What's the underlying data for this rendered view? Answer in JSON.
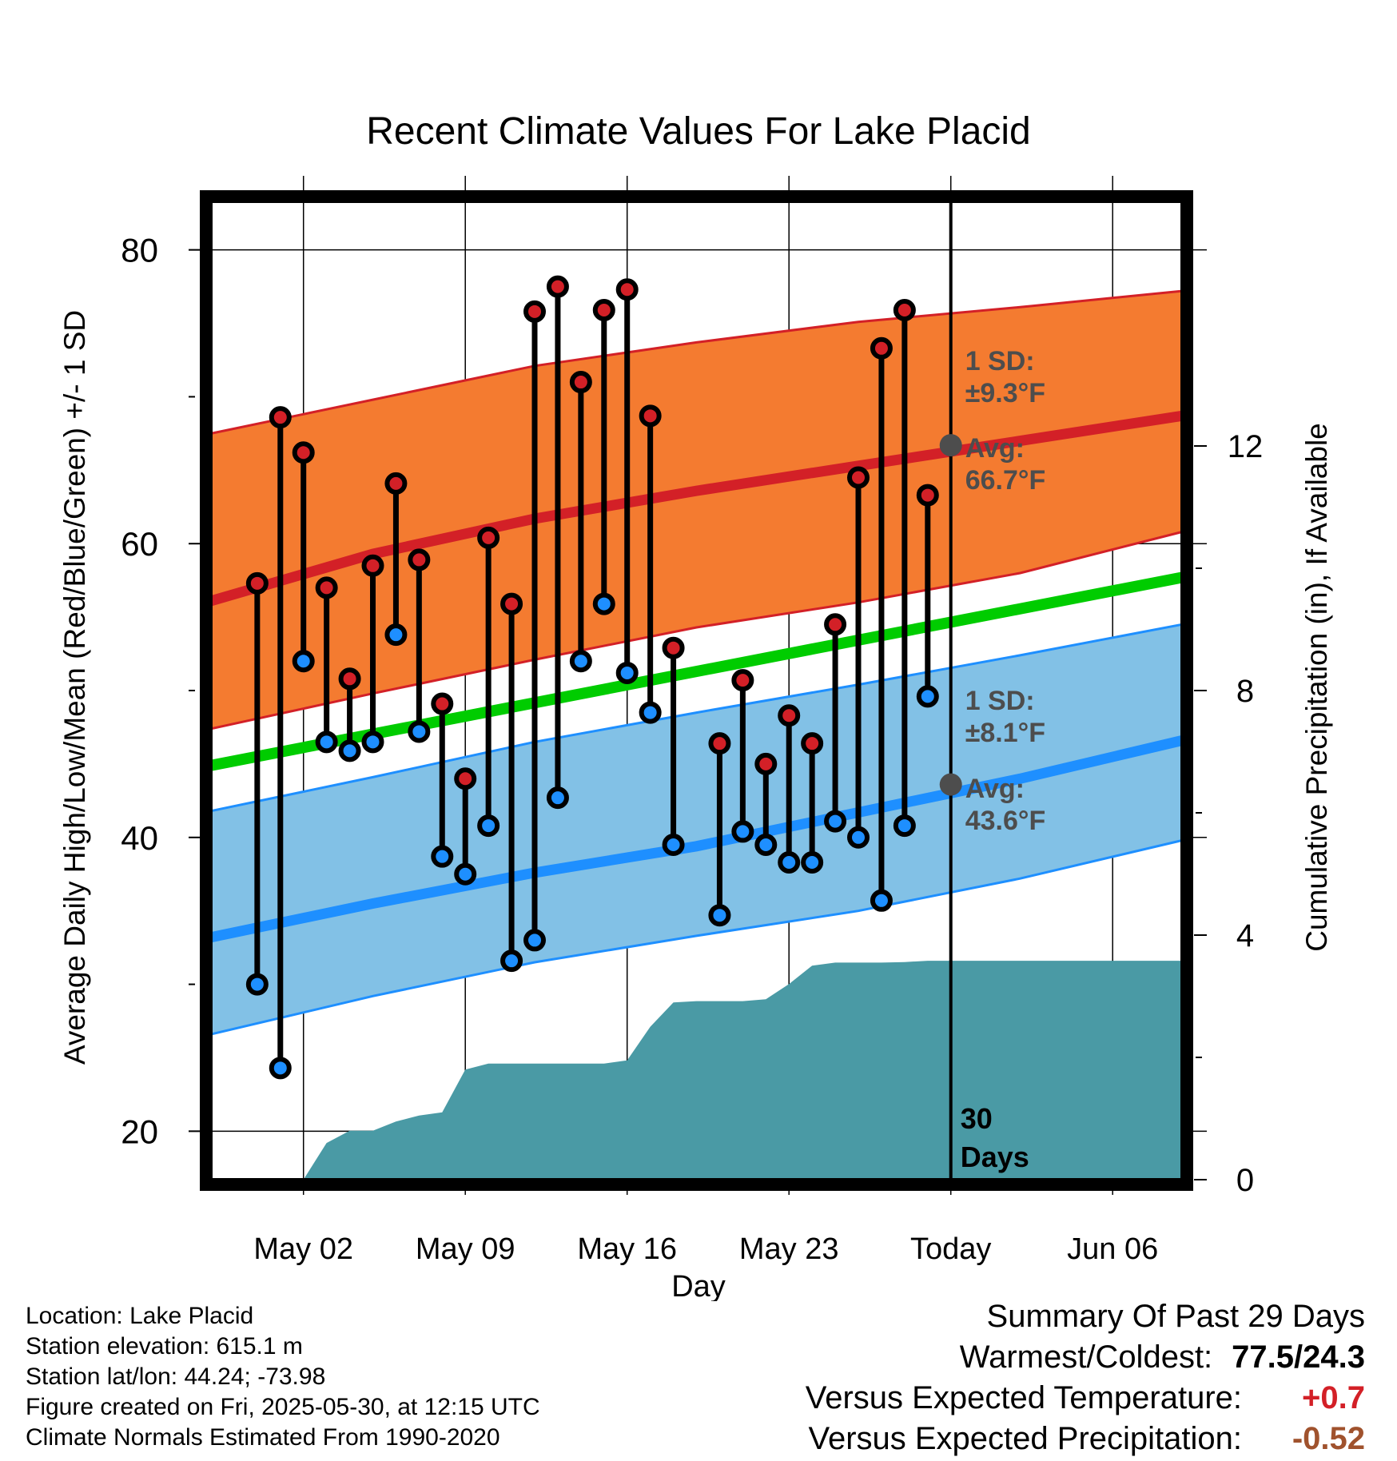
{
  "chart_data": {
    "type": "line",
    "title": "Recent Climate Values For Lake Placid",
    "xlabel": "Day",
    "ylabel": "Average Daily High/Low/Mean (Red/Blue/Green) +/- 1 SD",
    "y2label": "Cumulative Precipitation (in), If Available",
    "x_domain": [
      "2025-04-28",
      "2025-06-09"
    ],
    "ylim": [
      16.7,
      83.3
    ],
    "y2lim": [
      0,
      16
    ],
    "x_ticks": [
      {
        "date": "2025-05-02",
        "label": "May 02"
      },
      {
        "date": "2025-05-09",
        "label": "May 09"
      },
      {
        "date": "2025-05-16",
        "label": "May 16"
      },
      {
        "date": "2025-05-23",
        "label": "May 23"
      },
      {
        "date": "2025-05-30",
        "label": "Today"
      },
      {
        "date": "2025-06-06",
        "label": "Jun 06"
      }
    ],
    "y_ticks": [
      "20",
      "40",
      "60",
      "80"
    ],
    "y2_ticks": [
      "0",
      "4",
      "8",
      "12"
    ],
    "today": "2025-05-30",
    "days_label": [
      "30",
      "Days"
    ],
    "normal_high": {
      "dates": [
        "2025-04-28",
        "2025-05-05",
        "2025-05-12",
        "2025-05-19",
        "2025-05-26",
        "2025-06-02",
        "2025-06-09"
      ],
      "avg": [
        56.1,
        59.3,
        61.7,
        63.6,
        65.3,
        67.0,
        68.7
      ],
      "upper": [
        67.5,
        69.8,
        72.1,
        73.7,
        75.1,
        76.1,
        77.2
      ],
      "lower": [
        47.4,
        49.8,
        52.1,
        54.3,
        56.0,
        58.0,
        60.8
      ]
    },
    "normal_low": {
      "dates": [
        "2025-04-28",
        "2025-05-05",
        "2025-05-12",
        "2025-05-19",
        "2025-05-26",
        "2025-06-02",
        "2025-06-09"
      ],
      "avg": [
        33.2,
        35.5,
        37.6,
        39.4,
        41.7,
        44.0,
        46.6
      ],
      "upper": [
        41.8,
        44.1,
        46.5,
        48.5,
        50.4,
        52.4,
        54.5
      ],
      "lower": [
        26.6,
        29.2,
        31.5,
        33.3,
        35.0,
        37.2,
        39.8
      ]
    },
    "normal_mean": {
      "dates": [
        "2025-04-28",
        "2025-06-09"
      ],
      "values": [
        44.9,
        57.7
      ]
    },
    "annotations": {
      "high_sd": [
        "1 SD:",
        "±9.3°F"
      ],
      "high_avg": [
        "Avg:",
        "66.7°F"
      ],
      "low_sd": [
        "1 SD:",
        "±8.1°F"
      ],
      "low_avg": [
        "Avg:",
        "43.6°F"
      ]
    },
    "today_high_avg": 66.7,
    "today_low_avg": 43.6,
    "observations": {
      "dates": [
        "2025-04-30",
        "2025-05-01",
        "2025-05-02",
        "2025-05-03",
        "2025-05-04",
        "2025-05-05",
        "2025-05-06",
        "2025-05-07",
        "2025-05-08",
        "2025-05-09",
        "2025-05-10",
        "2025-05-11",
        "2025-05-12",
        "2025-05-13",
        "2025-05-14",
        "2025-05-15",
        "2025-05-16",
        "2025-05-17",
        "2025-05-18",
        "2025-05-20",
        "2025-05-21",
        "2025-05-22",
        "2025-05-23",
        "2025-05-24",
        "2025-05-25",
        "2025-05-26",
        "2025-05-27",
        "2025-05-28",
        "2025-05-29"
      ],
      "high": [
        57.3,
        68.6,
        66.2,
        57.0,
        50.8,
        58.5,
        64.1,
        58.9,
        49.1,
        44.0,
        60.4,
        55.9,
        75.8,
        77.5,
        71.0,
        75.9,
        77.3,
        68.7,
        52.9,
        46.4,
        50.7,
        45.0,
        48.3,
        46.4,
        54.5,
        64.5,
        73.3,
        75.9,
        63.3
      ],
      "low": [
        30.0,
        24.3,
        52.0,
        46.5,
        45.9,
        46.5,
        53.8,
        47.2,
        38.7,
        37.5,
        40.8,
        31.6,
        33.0,
        42.7,
        52.0,
        55.9,
        51.2,
        48.5,
        39.5,
        34.7,
        40.4,
        39.5,
        38.3,
        38.3,
        41.1,
        40.0,
        35.7,
        40.8,
        49.6
      ]
    },
    "precipitation": {
      "dates": [
        "2025-05-02",
        "2025-05-03",
        "2025-05-04",
        "2025-05-05",
        "2025-05-06",
        "2025-05-07",
        "2025-05-08",
        "2025-05-09",
        "2025-05-10",
        "2025-05-11",
        "2025-05-12",
        "2025-05-13",
        "2025-05-14",
        "2025-05-15",
        "2025-05-16",
        "2025-05-17",
        "2025-05-18",
        "2025-05-19",
        "2025-05-20",
        "2025-05-21",
        "2025-05-22",
        "2025-05-23",
        "2025-05-24",
        "2025-05-25",
        "2025-05-26",
        "2025-05-27",
        "2025-05-28",
        "2025-05-29",
        "2025-05-30",
        "2025-06-09"
      ],
      "values": [
        0.0,
        0.6,
        0.8,
        0.8,
        0.95,
        1.05,
        1.1,
        1.8,
        1.9,
        1.9,
        1.9,
        1.9,
        1.9,
        1.9,
        1.95,
        2.5,
        2.9,
        2.92,
        2.92,
        2.92,
        2.95,
        3.2,
        3.5,
        3.55,
        3.55,
        3.55,
        3.56,
        3.58,
        3.58,
        3.58
      ]
    },
    "colors": {
      "high_band": "#f47b30",
      "high_avg": "#d32027",
      "low_band": "#82c1e6",
      "low_avg": "#1e8fff",
      "mean": "#00cc00",
      "precip": "#4a9aa5",
      "high_dot": "#d32027",
      "low_dot": "#1e8fff",
      "annotation": "#4d4d4d"
    }
  },
  "info": {
    "location": "Location: Lake Placid",
    "elevation": "Station elevation: 615.1 m",
    "latlon": "Station lat/lon: 44.24; -73.98",
    "created": "Figure created on Fri, 2025-05-30, at 12:15 UTC",
    "normals": "Climate Normals Estimated From 1990-2020"
  },
  "summary": {
    "heading": "Summary Of Past 29 Days",
    "warmest_label": "Warmest/Coldest:",
    "warmest_value": "77.5/24.3",
    "temp_label": "Versus Expected Temperature:",
    "temp_value": "+0.7",
    "precip_label": "Versus Expected Precipitation:",
    "precip_value": "-0.52"
  }
}
